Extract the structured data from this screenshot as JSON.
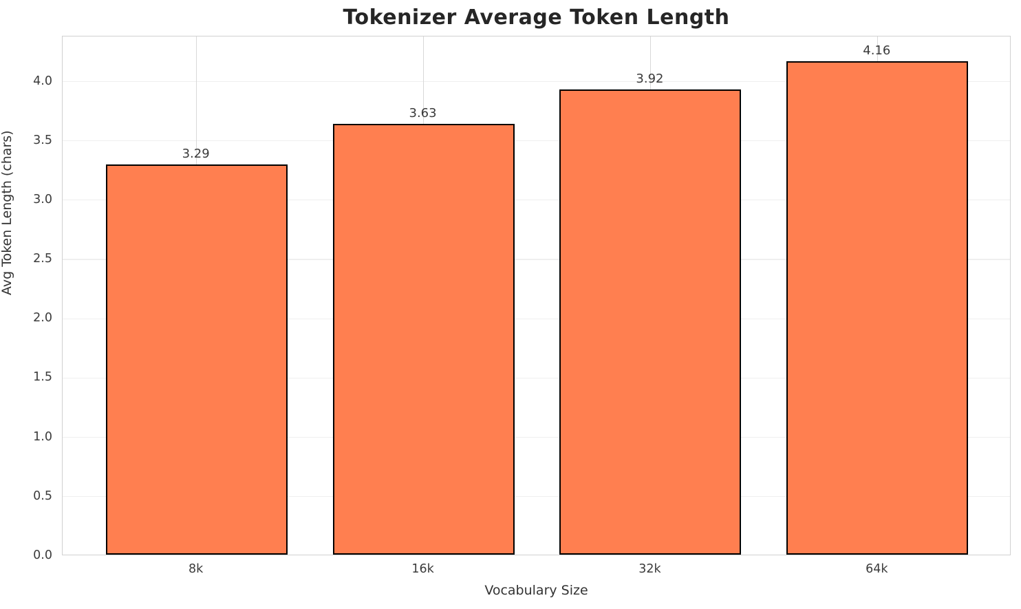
{
  "chart_data": {
    "type": "bar",
    "title": "Tokenizer Average Token Length",
    "xlabel": "Vocabulary Size",
    "ylabel": "Avg Token Length (chars)",
    "categories": [
      "8k",
      "16k",
      "32k",
      "64k"
    ],
    "values": [
      3.29,
      3.63,
      3.92,
      4.16
    ],
    "value_labels": [
      "3.29",
      "3.63",
      "3.92",
      "4.16"
    ],
    "yticks": [
      0.0,
      0.5,
      1.0,
      1.5,
      2.0,
      2.5,
      3.0,
      3.5,
      4.0
    ],
    "ytick_labels": [
      "0.0",
      "0.5",
      "1.0",
      "1.5",
      "2.0",
      "2.5",
      "3.0",
      "3.5",
      "4.0"
    ],
    "ylim": [
      0,
      4.38
    ],
    "xlim": [
      -0.59,
      3.59
    ],
    "bar_width": 0.8,
    "grid": true,
    "legend_position": "none",
    "colors": {
      "bar_fill": "#ff7f50",
      "bar_edge": "#000000",
      "grid_vertical": "#d8d8d8",
      "grid_horizontal": "#efefef",
      "spine": "#d0d0d0",
      "title_text": "#262626",
      "axis_text": "#3b3b3b",
      "label_text": "#333333"
    }
  }
}
